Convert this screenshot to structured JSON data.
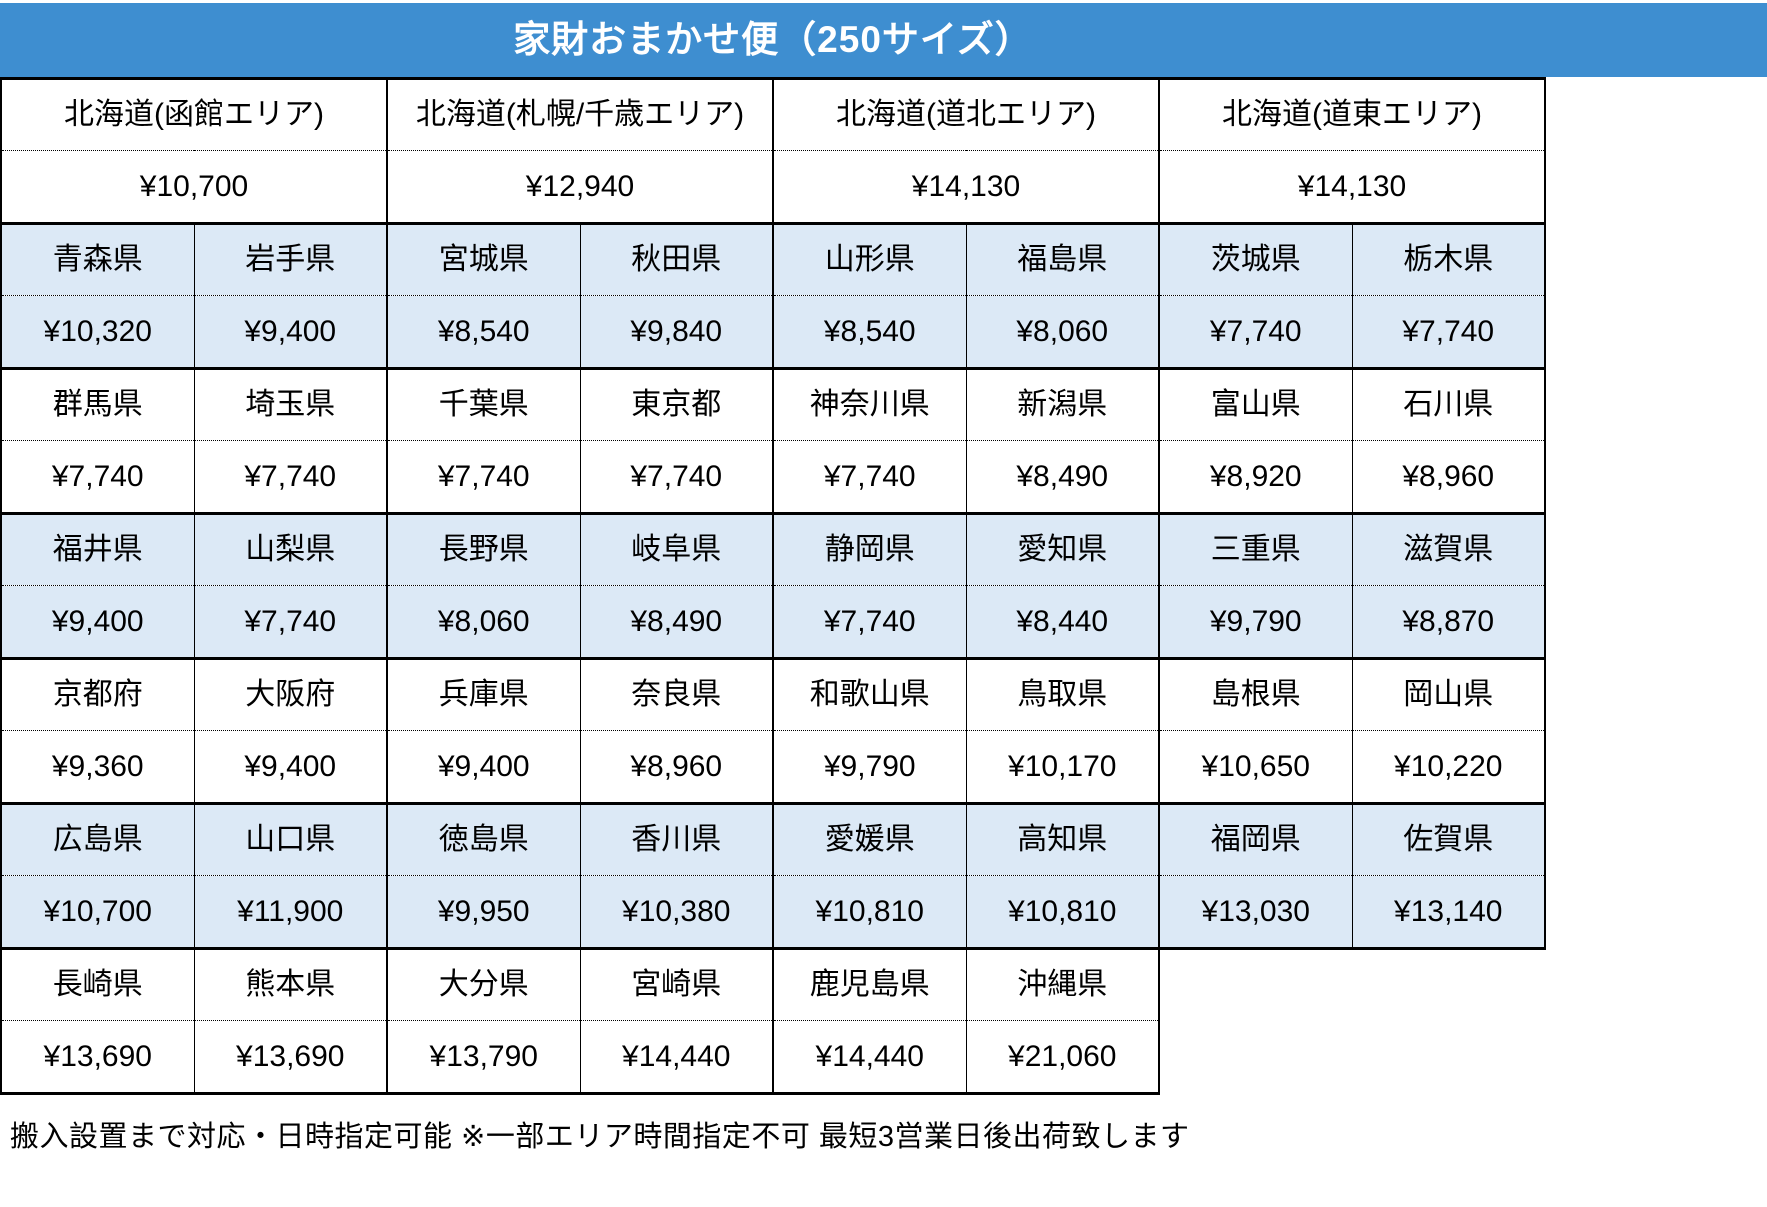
{
  "title": "家財おまかせ便（250サイズ）",
  "hokkaido_areas": [
    {
      "name": "北海道(函館エリア)",
      "price": "¥10,700"
    },
    {
      "name": "北海道(札幌/千歳エリア)",
      "price": "¥12,940"
    },
    {
      "name": "北海道(道北エリア)",
      "price": "¥14,130"
    },
    {
      "name": "北海道(道東エリア)",
      "price": "¥14,130"
    }
  ],
  "prefecture_groups": [
    {
      "shaded": true,
      "cells": [
        {
          "prefecture": "青森県",
          "price": "¥10,320"
        },
        {
          "prefecture": "岩手県",
          "price": "¥9,400"
        },
        {
          "prefecture": "宮城県",
          "price": "¥8,540"
        },
        {
          "prefecture": "秋田県",
          "price": "¥9,840"
        },
        {
          "prefecture": "山形県",
          "price": "¥8,540"
        },
        {
          "prefecture": "福島県",
          "price": "¥8,060"
        },
        {
          "prefecture": "茨城県",
          "price": "¥7,740"
        },
        {
          "prefecture": "栃木県",
          "price": "¥7,740"
        }
      ]
    },
    {
      "shaded": false,
      "cells": [
        {
          "prefecture": "群馬県",
          "price": "¥7,740"
        },
        {
          "prefecture": "埼玉県",
          "price": "¥7,740"
        },
        {
          "prefecture": "千葉県",
          "price": "¥7,740"
        },
        {
          "prefecture": "東京都",
          "price": "¥7,740"
        },
        {
          "prefecture": "神奈川県",
          "price": "¥7,740"
        },
        {
          "prefecture": "新潟県",
          "price": "¥8,490"
        },
        {
          "prefecture": "富山県",
          "price": "¥8,920"
        },
        {
          "prefecture": "石川県",
          "price": "¥8,960"
        }
      ]
    },
    {
      "shaded": true,
      "cells": [
        {
          "prefecture": "福井県",
          "price": "¥9,400"
        },
        {
          "prefecture": "山梨県",
          "price": "¥7,740"
        },
        {
          "prefecture": "長野県",
          "price": "¥8,060"
        },
        {
          "prefecture": "岐阜県",
          "price": "¥8,490"
        },
        {
          "prefecture": "静岡県",
          "price": "¥7,740"
        },
        {
          "prefecture": "愛知県",
          "price": "¥8,440"
        },
        {
          "prefecture": "三重県",
          "price": "¥9,790"
        },
        {
          "prefecture": "滋賀県",
          "price": "¥8,870"
        }
      ]
    },
    {
      "shaded": false,
      "cells": [
        {
          "prefecture": "京都府",
          "price": "¥9,360"
        },
        {
          "prefecture": "大阪府",
          "price": "¥9,400"
        },
        {
          "prefecture": "兵庫県",
          "price": "¥9,400"
        },
        {
          "prefecture": "奈良県",
          "price": "¥8,960"
        },
        {
          "prefecture": "和歌山県",
          "price": "¥9,790"
        },
        {
          "prefecture": "鳥取県",
          "price": "¥10,170"
        },
        {
          "prefecture": "島根県",
          "price": "¥10,650"
        },
        {
          "prefecture": "岡山県",
          "price": "¥10,220"
        }
      ]
    },
    {
      "shaded": true,
      "cells": [
        {
          "prefecture": "広島県",
          "price": "¥10,700"
        },
        {
          "prefecture": "山口県",
          "price": "¥11,900"
        },
        {
          "prefecture": "徳島県",
          "price": "¥9,950"
        },
        {
          "prefecture": "香川県",
          "price": "¥10,380"
        },
        {
          "prefecture": "愛媛県",
          "price": "¥10,810"
        },
        {
          "prefecture": "高知県",
          "price": "¥10,810"
        },
        {
          "prefecture": "福岡県",
          "price": "¥13,030"
        },
        {
          "prefecture": "佐賀県",
          "price": "¥13,140"
        }
      ]
    },
    {
      "shaded": false,
      "cells": [
        {
          "prefecture": "長崎県",
          "price": "¥13,690"
        },
        {
          "prefecture": "熊本県",
          "price": "¥13,690"
        },
        {
          "prefecture": "大分県",
          "price": "¥13,790"
        },
        {
          "prefecture": "宮崎県",
          "price": "¥14,440"
        },
        {
          "prefecture": "鹿児島県",
          "price": "¥14,440"
        },
        {
          "prefecture": "沖縄県",
          "price": "¥21,060"
        }
      ]
    }
  ],
  "footer_note": "搬入設置まで対応・日時指定可能 ※一部エリア時間指定不可 最短3営業日後出荷致します",
  "colors": {
    "title_bar_blue": "#3E8ED0",
    "shaded_row_blue": "#DCE9F6",
    "title_text": "#FFFFFF",
    "border": "#000000"
  }
}
